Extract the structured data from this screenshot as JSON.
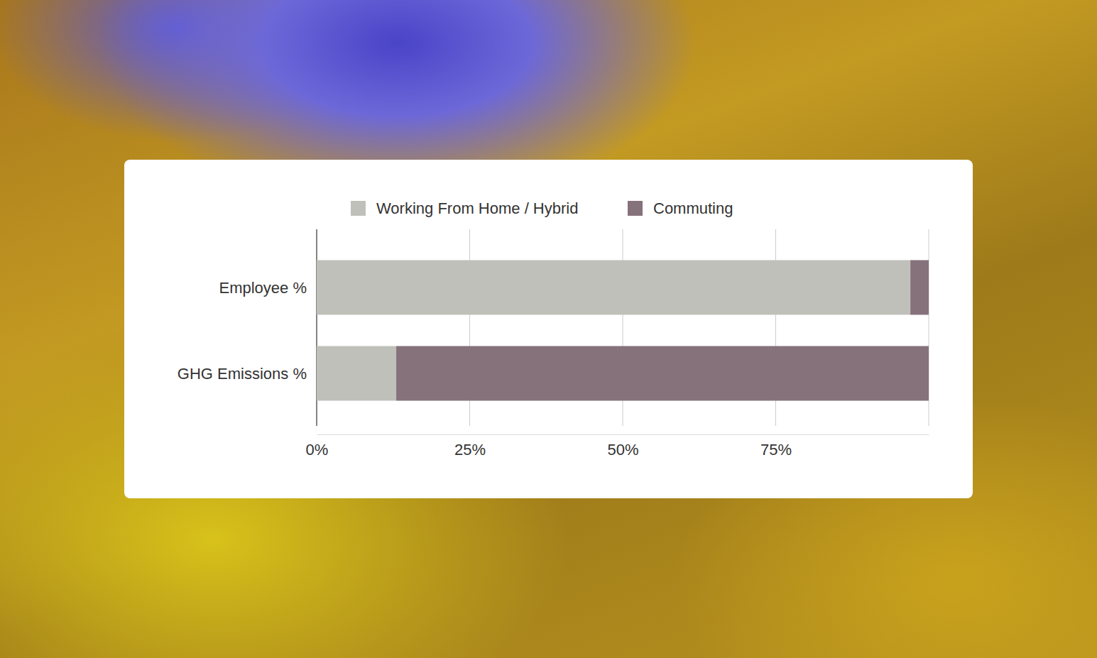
{
  "chart_data": {
    "type": "bar",
    "orientation": "horizontal",
    "stacked": true,
    "categories": [
      "Employee %",
      "GHG Emissions %"
    ],
    "series": [
      {
        "name": "Working From Home / Hybrid",
        "color": "#c0c0bb",
        "values": [
          97,
          13
        ]
      },
      {
        "name": "Commuting",
        "color": "#85727b",
        "values": [
          3,
          87
        ]
      }
    ],
    "xlim": [
      0,
      100
    ],
    "xticks": [
      {
        "value": 0,
        "label": "0%"
      },
      {
        "value": 25,
        "label": "25%"
      },
      {
        "value": 50,
        "label": "50%"
      },
      {
        "value": 75,
        "label": "75%"
      }
    ],
    "grid": true,
    "legend": "top"
  }
}
